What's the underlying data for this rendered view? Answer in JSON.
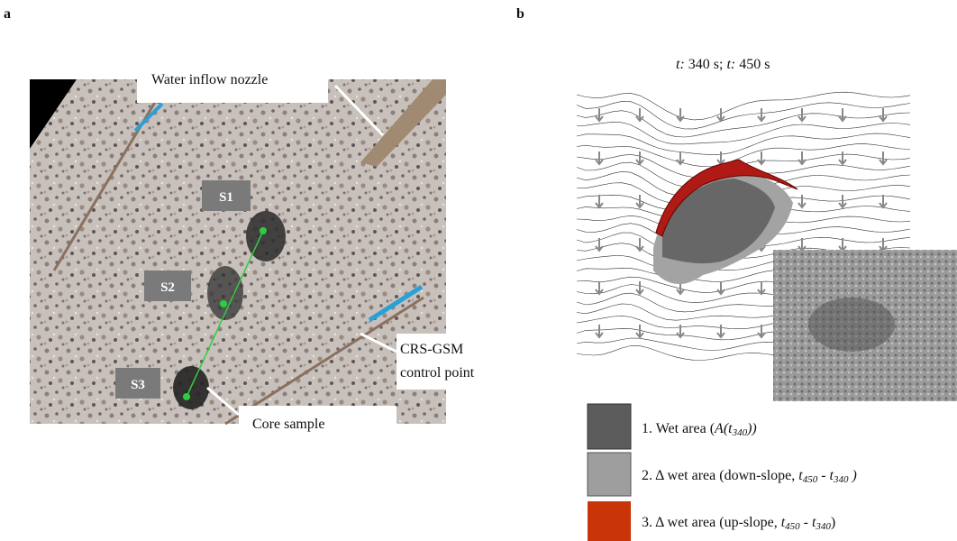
{
  "panel_a": {
    "label": "a",
    "annotations": {
      "nozzle": "Water inflow  nozzle",
      "control_line1": "CRS-GSM",
      "control_line2": "control point",
      "core": "Core sample"
    },
    "samples": [
      "S1",
      "S2",
      "S3"
    ]
  },
  "panel_b": {
    "label": "b",
    "title_parts": [
      "t:",
      " 340 s; ",
      "t:",
      " 450 s"
    ],
    "legend": [
      {
        "parts": [
          "1. Wet area (",
          "A(t",
          "340",
          "))"
        ]
      },
      {
        "parts": [
          "2. Δ wet area (down-slope, ",
          "t",
          "450",
          " - ",
          "t",
          "340",
          " )"
        ]
      },
      {
        "parts": [
          "3. Δ wet area (up-slope, ",
          "t",
          "450",
          " - ",
          "t",
          "340",
          ")"
        ]
      }
    ]
  }
}
